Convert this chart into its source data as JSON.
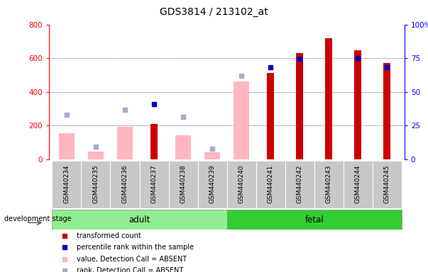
{
  "title": "GDS3814 / 213102_at",
  "samples": [
    "GSM440234",
    "GSM440235",
    "GSM440236",
    "GSM440237",
    "GSM440238",
    "GSM440239",
    "GSM440240",
    "GSM440241",
    "GSM440242",
    "GSM440243",
    "GSM440244",
    "GSM440245"
  ],
  "red_bars": [
    null,
    null,
    null,
    210,
    null,
    null,
    null,
    510,
    630,
    720,
    645,
    570
  ],
  "blue_squares_left": [
    null,
    null,
    null,
    325,
    null,
    null,
    null,
    545,
    595,
    null,
    600,
    547
  ],
  "pink_bars": [
    155,
    45,
    190,
    null,
    140,
    40,
    460,
    null,
    null,
    null,
    null,
    null
  ],
  "lavender_squares_left": [
    265,
    75,
    295,
    null,
    250,
    60,
    495,
    null,
    null,
    null,
    null,
    null
  ],
  "left_ylim": [
    0,
    800
  ],
  "right_ylim": [
    0,
    100
  ],
  "left_yticks": [
    0,
    200,
    400,
    600,
    800
  ],
  "right_yticks": [
    0,
    25,
    50,
    75,
    100
  ],
  "right_yticklabels": [
    "0",
    "25",
    "50",
    "75",
    "100%"
  ],
  "adult_color": "#90EE90",
  "fetal_color": "#32CD32",
  "red_color": "#CC0000",
  "blue_color": "#0000BB",
  "pink_color": "#FFB6C1",
  "lavender_color": "#AAAACC",
  "gray_color": "#C8C8C8",
  "bg_color": "#FFFFFF",
  "legend_items": [
    {
      "label": "transformed count",
      "color": "#CC0000"
    },
    {
      "label": "percentile rank within the sample",
      "color": "#0000BB"
    },
    {
      "label": "value, Detection Call = ABSENT",
      "color": "#FFB6C1"
    },
    {
      "label": "rank, Detection Call = ABSENT",
      "color": "#AAAACC"
    }
  ],
  "adult_indices": [
    0,
    1,
    2,
    3,
    4,
    5
  ],
  "fetal_indices": [
    6,
    7,
    8,
    9,
    10,
    11
  ]
}
